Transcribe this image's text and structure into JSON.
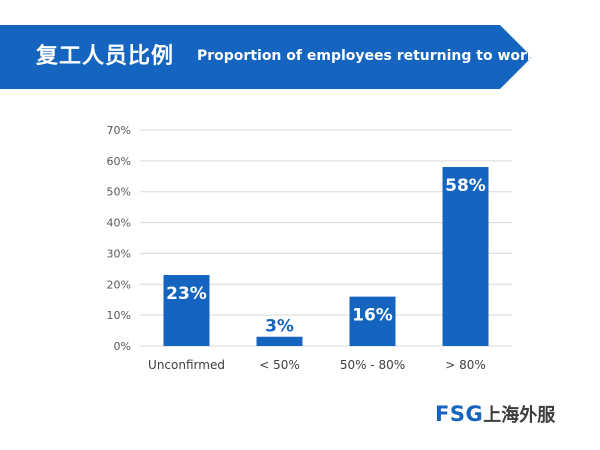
{
  "header": {
    "title_cn": "复工人员比例",
    "title_en": "Proportion of employees returning to work"
  },
  "brand": {
    "latin": "FSG",
    "cn": "上海外服"
  },
  "colors": {
    "accent": "#1565c0",
    "bar": "#1565c0",
    "grid": "#d9d9d9",
    "tick_text": "#595959",
    "category_text": "#404040"
  },
  "chart_data": {
    "type": "bar",
    "categories": [
      "Unconfirmed",
      "< 50%",
      "50% - 80%",
      "> 80%"
    ],
    "values": [
      23,
      3,
      16,
      58
    ],
    "data_labels": [
      "23%",
      "3%",
      "16%",
      "58%"
    ],
    "ylim": [
      0,
      70
    ],
    "yticks": [
      0,
      10,
      20,
      30,
      40,
      50,
      60,
      70
    ],
    "ytick_labels": [
      "0%",
      "10%",
      "20%",
      "30%",
      "40%",
      "50%",
      "60%",
      "70%"
    ],
    "grid": true,
    "legend": "none",
    "xlabel": "",
    "ylabel": ""
  }
}
